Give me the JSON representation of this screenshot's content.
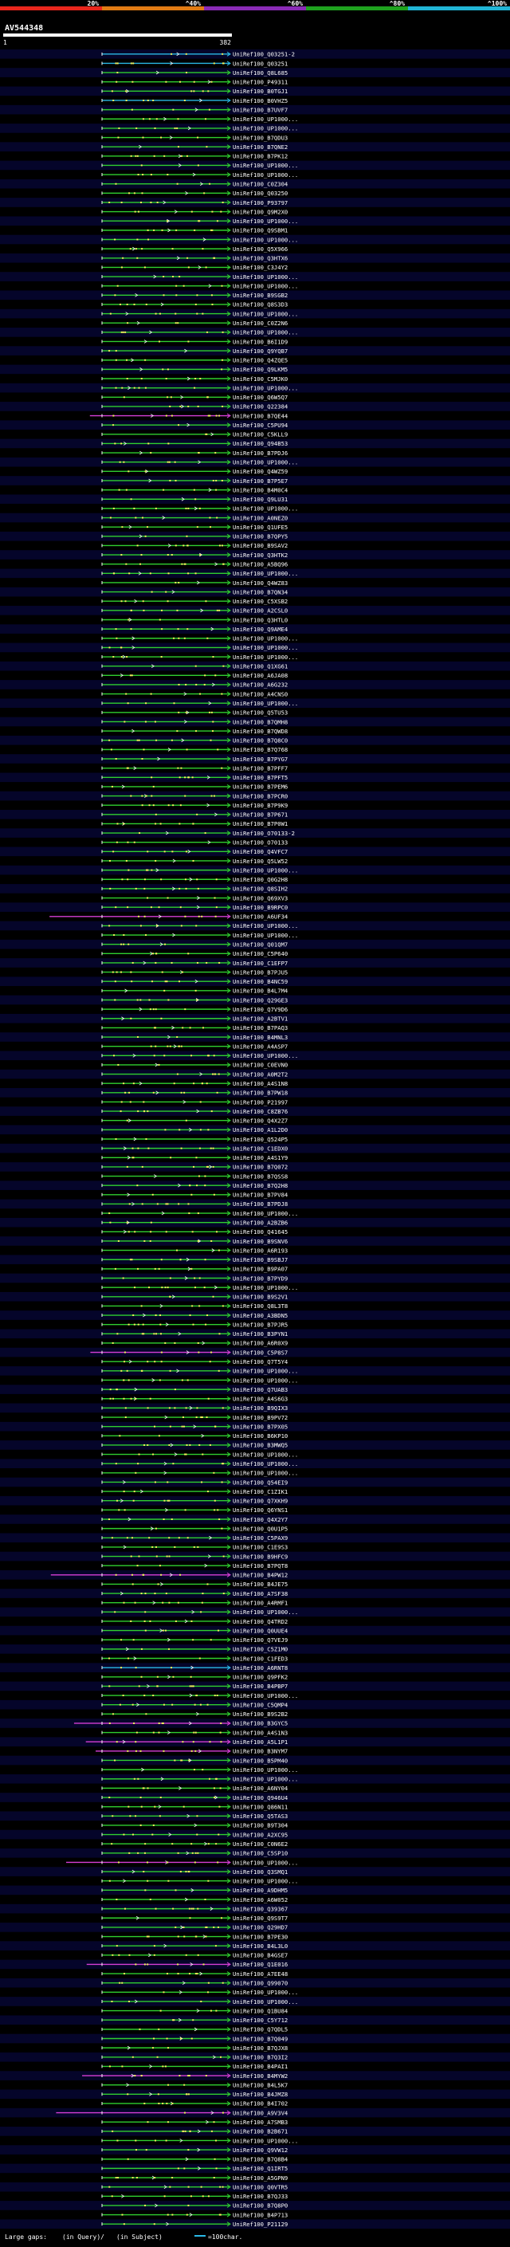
{
  "chart_data": {
    "type": "alignment-overview",
    "title": "AV544348",
    "query_range": [
      1,
      382
    ],
    "query_start_label": "1",
    "query_end_label": "382",
    "identity_scale": [
      {
        "label": "20%",
        "color": "#e8261c"
      },
      {
        "label": "^40%",
        "color": "#e07b14"
      },
      {
        "label": "^60%",
        "color": "#8a2bb6"
      },
      {
        "label": "^80%",
        "color": "#1fa21f"
      },
      {
        "label": "^100%",
        "color": "#21b5d6"
      }
    ],
    "hits": [
      {
        "label": "UniRef100_Q03251-2",
        "color": "cyan"
      },
      {
        "label": "UniRef100_Q03251",
        "color": "cyan"
      },
      {
        "label": "UniRef100_Q8L685",
        "color": "green"
      },
      {
        "label": "UniRef100_P49311",
        "color": "green"
      },
      {
        "label": "UniRef100_B0TGJ1",
        "color": "green"
      },
      {
        "label": "UniRef100_B0VHZ5",
        "color": "cyan"
      },
      {
        "label": "UniRef100_B7UVF7",
        "color": "green"
      },
      {
        "label": "UniRef100_UP1000...",
        "color": "green"
      },
      {
        "label": "UniRef100_UP1000...",
        "color": "green"
      },
      {
        "label": "UniRef100_B7QDU3",
        "color": "green"
      },
      {
        "label": "UniRef100_B7QNE2",
        "color": "green"
      },
      {
        "label": "UniRef100_B7PK12",
        "color": "green"
      },
      {
        "label": "UniRef100_UP1000...",
        "color": "green"
      },
      {
        "label": "UniRef100_UP1000...",
        "color": "green"
      },
      {
        "label": "UniRef100_C0Z304",
        "color": "green"
      },
      {
        "label": "UniRef100_Q03250",
        "color": "green"
      },
      {
        "label": "UniRef100_P93797",
        "color": "green"
      },
      {
        "label": "UniRef100_Q9M2X0",
        "color": "green"
      },
      {
        "label": "UniRef100_UP1000...",
        "color": "green"
      },
      {
        "label": "UniRef100_Q9SBM1",
        "color": "green"
      },
      {
        "label": "UniRef100_UP1000...",
        "color": "green"
      },
      {
        "label": "UniRef100_Q5X966",
        "color": "green"
      },
      {
        "label": "UniRef100_Q3HTX6",
        "color": "green"
      },
      {
        "label": "UniRef100_C3J4Y2",
        "color": "green"
      },
      {
        "label": "UniRef100_UP1000...",
        "color": "green"
      },
      {
        "label": "UniRef100_UP1000...",
        "color": "green"
      },
      {
        "label": "UniRef100_B9SGB2",
        "color": "green"
      },
      {
        "label": "UniRef100_Q8S3D3",
        "color": "green"
      },
      {
        "label": "UniRef100_UP1000...",
        "color": "green"
      },
      {
        "label": "UniRef100_C0Z2N6",
        "color": "green"
      },
      {
        "label": "UniRef100_UP1000...",
        "color": "green"
      },
      {
        "label": "UniRef100_B6I1D9",
        "color": "green"
      },
      {
        "label": "UniRef100_Q9YQB7",
        "color": "green"
      },
      {
        "label": "UniRef100_Q4ZQE5",
        "color": "green"
      },
      {
        "label": "UniRef100_Q9LKM5",
        "color": "green"
      },
      {
        "label": "UniRef100_C5MJK0",
        "color": "green"
      },
      {
        "label": "UniRef100_UP1000...",
        "color": "green"
      },
      {
        "label": "UniRef100_Q6W5Q7",
        "color": "green"
      },
      {
        "label": "UniRef100_Q22384",
        "color": "green"
      },
      {
        "label": "UniRef100_B7QE44",
        "color": "magenta"
      },
      {
        "label": "UniRef100_C5PU94",
        "color": "green"
      },
      {
        "label": "UniRef100_C5KLL9",
        "color": "green"
      },
      {
        "label": "UniRef100_Q94B53",
        "color": "green"
      },
      {
        "label": "UniRef100_B7PDJ6",
        "color": "green"
      },
      {
        "label": "UniRef100_UP1000...",
        "color": "green"
      },
      {
        "label": "UniRef100_Q4WZ59",
        "color": "green"
      },
      {
        "label": "UniRef100_B7P5E7",
        "color": "green"
      },
      {
        "label": "UniRef100_B4M0C4",
        "color": "green"
      },
      {
        "label": "UniRef100_Q9LU31",
        "color": "green"
      },
      {
        "label": "UniRef100_UP1000...",
        "color": "green"
      },
      {
        "label": "UniRef100_A0NEZ0",
        "color": "green"
      },
      {
        "label": "UniRef100_Q1UFE5",
        "color": "green"
      },
      {
        "label": "UniRef100_B7QPY5",
        "color": "green"
      },
      {
        "label": "UniRef100_B9SAV2",
        "color": "green"
      },
      {
        "label": "UniRef100_Q3HTK2",
        "color": "green"
      },
      {
        "label": "UniRef100_A5BQ96",
        "color": "green"
      },
      {
        "label": "UniRef100_UP1000...",
        "color": "green"
      },
      {
        "label": "UniRef100_Q4WZ83",
        "color": "green"
      },
      {
        "label": "UniRef100_B7QN34",
        "color": "green"
      },
      {
        "label": "UniRef100_C5XSB2",
        "color": "green"
      },
      {
        "label": "UniRef100_A2CSL0",
        "color": "green"
      },
      {
        "label": "UniRef100_Q3HTL0",
        "color": "green"
      },
      {
        "label": "UniRef100_Q9AME4",
        "color": "green"
      },
      {
        "label": "UniRef100_UP1000...",
        "color": "green"
      },
      {
        "label": "UniRef100_UP1000...",
        "color": "green"
      },
      {
        "label": "UniRef100_UP1000...",
        "color": "green"
      },
      {
        "label": "UniRef100_Q1XG61",
        "color": "green"
      },
      {
        "label": "UniRef100_A6JA08",
        "color": "green"
      },
      {
        "label": "UniRef100_A6G232",
        "color": "green"
      },
      {
        "label": "UniRef100_A4CNS0",
        "color": "green"
      },
      {
        "label": "UniRef100_UP1000...",
        "color": "green"
      },
      {
        "label": "UniRef100_Q5TU53",
        "color": "green"
      },
      {
        "label": "UniRef100_B7QMH8",
        "color": "green"
      },
      {
        "label": "UniRef100_B7QWD8",
        "color": "green"
      },
      {
        "label": "UniRef100_B7Q8C0",
        "color": "green"
      },
      {
        "label": "UniRef100_B7Q768",
        "color": "green"
      },
      {
        "label": "UniRef100_B7PYG7",
        "color": "green"
      },
      {
        "label": "UniRef100_B7PFF7",
        "color": "green"
      },
      {
        "label": "UniRef100_B7PFT5",
        "color": "green"
      },
      {
        "label": "UniRef100_B7PEM6",
        "color": "green"
      },
      {
        "label": "UniRef100_B7PCR0",
        "color": "green"
      },
      {
        "label": "UniRef100_B7P9K9",
        "color": "green"
      },
      {
        "label": "UniRef100_B7P671",
        "color": "green"
      },
      {
        "label": "UniRef100_B7P0W1",
        "color": "green"
      },
      {
        "label": "UniRef100_O70133-2",
        "color": "green"
      },
      {
        "label": "UniRef100_O70133",
        "color": "green"
      },
      {
        "label": "UniRef100_Q4VFC7",
        "color": "green"
      },
      {
        "label": "UniRef100_Q5LW52",
        "color": "green"
      },
      {
        "label": "UniRef100_UP1000...",
        "color": "green"
      },
      {
        "label": "UniRef100_Q0G2H8",
        "color": "green"
      },
      {
        "label": "UniRef100_Q8SIH2",
        "color": "green"
      },
      {
        "label": "UniRef100_Q69XV3",
        "color": "green"
      },
      {
        "label": "UniRef100_B9RPC0",
        "color": "green"
      },
      {
        "label": "UniRef100_A6UF34",
        "color": "magenta"
      },
      {
        "label": "UniRef100_UP1000...",
        "color": "green"
      },
      {
        "label": "UniRef100_UP1000...",
        "color": "green"
      },
      {
        "label": "UniRef100_Q01QM7",
        "color": "green"
      },
      {
        "label": "UniRef100_C5P640",
        "color": "green"
      },
      {
        "label": "UniRef100_C1EFP7",
        "color": "green"
      },
      {
        "label": "UniRef100_B7PJU5",
        "color": "green"
      },
      {
        "label": "UniRef100_B4NC59",
        "color": "green"
      },
      {
        "label": "UniRef100_B4L7M4",
        "color": "green"
      },
      {
        "label": "UniRef100_Q29GE3",
        "color": "green"
      },
      {
        "label": "UniRef100_Q7V9D6",
        "color": "green"
      },
      {
        "label": "UniRef100_A2BTV1",
        "color": "green"
      },
      {
        "label": "UniRef100_B7PAQ3",
        "color": "green"
      },
      {
        "label": "UniRef100_B4MNL3",
        "color": "green"
      },
      {
        "label": "UniRef100_A4ASP7",
        "color": "green"
      },
      {
        "label": "UniRef100_UP1000...",
        "color": "green"
      },
      {
        "label": "UniRef100_C0EVN0",
        "color": "green"
      },
      {
        "label": "UniRef100_A0M2T2",
        "color": "green"
      },
      {
        "label": "UniRef100_A4S1N8",
        "color": "green"
      },
      {
        "label": "UniRef100_B7PW18",
        "color": "green"
      },
      {
        "label": "UniRef100_P21997",
        "color": "green"
      },
      {
        "label": "UniRef100_C8ZB76",
        "color": "green"
      },
      {
        "label": "UniRef100_Q4X2Z7",
        "color": "green"
      },
      {
        "label": "UniRef100_A1L2D0",
        "color": "green"
      },
      {
        "label": "UniRef100_Q524P5",
        "color": "green"
      },
      {
        "label": "UniRef100_C1EDX0",
        "color": "green"
      },
      {
        "label": "UniRef100_A4S1Y9",
        "color": "green"
      },
      {
        "label": "UniRef100_B7Q072",
        "color": "green"
      },
      {
        "label": "UniRef100_B7QSS8",
        "color": "green"
      },
      {
        "label": "UniRef100_B7Q2H8",
        "color": "green"
      },
      {
        "label": "UniRef100_B7PV84",
        "color": "green"
      },
      {
        "label": "UniRef100_B7PDJ8",
        "color": "green"
      },
      {
        "label": "UniRef100_UP1000...",
        "color": "green"
      },
      {
        "label": "UniRef100_A2BZB6",
        "color": "green"
      },
      {
        "label": "UniRef100_Q41645",
        "color": "green"
      },
      {
        "label": "UniRef100_B9SNV6",
        "color": "green"
      },
      {
        "label": "UniRef100_A6R193",
        "color": "green"
      },
      {
        "label": "UniRef100_B9SBJ7",
        "color": "green"
      },
      {
        "label": "UniRef100_B9PA07",
        "color": "green"
      },
      {
        "label": "UniRef100_B7PYD9",
        "color": "green"
      },
      {
        "label": "UniRef100_UP1000...",
        "color": "green"
      },
      {
        "label": "UniRef100_B9S2V1",
        "color": "green"
      },
      {
        "label": "UniRef100_Q8L3T8",
        "color": "green"
      },
      {
        "label": "UniRef100_A3BDN5",
        "color": "green"
      },
      {
        "label": "UniRef100_B7PJR5",
        "color": "green"
      },
      {
        "label": "UniRef100_B3PYN1",
        "color": "green"
      },
      {
        "label": "UniRef100_A6R0X9",
        "color": "green"
      },
      {
        "label": "UniRef100_C5P8S7",
        "color": "magenta"
      },
      {
        "label": "UniRef100_Q7T5Y4",
        "color": "green"
      },
      {
        "label": "UniRef100_UP1000...",
        "color": "green"
      },
      {
        "label": "UniRef100_UP1000...",
        "color": "green"
      },
      {
        "label": "UniRef100_Q7UAB3",
        "color": "green"
      },
      {
        "label": "UniRef100_A4S6G3",
        "color": "green"
      },
      {
        "label": "UniRef100_B9QIX3",
        "color": "green"
      },
      {
        "label": "UniRef100_B9PV72",
        "color": "green"
      },
      {
        "label": "UniRef100_B7PX05",
        "color": "green"
      },
      {
        "label": "UniRef100_B6KP10",
        "color": "green"
      },
      {
        "label": "UniRef100_B3MWQ5",
        "color": "green"
      },
      {
        "label": "UniRef100_UP1000...",
        "color": "green"
      },
      {
        "label": "UniRef100_UP1000...",
        "color": "green"
      },
      {
        "label": "UniRef100_UP1000...",
        "color": "green"
      },
      {
        "label": "UniRef100_Q54EI9",
        "color": "green"
      },
      {
        "label": "UniRef100_C1ZIK1",
        "color": "green"
      },
      {
        "label": "UniRef100_Q7XKH9",
        "color": "green"
      },
      {
        "label": "UniRef100_Q6YNS1",
        "color": "green"
      },
      {
        "label": "UniRef100_Q4X2Y7",
        "color": "green"
      },
      {
        "label": "UniRef100_Q0U1P5",
        "color": "green"
      },
      {
        "label": "UniRef100_C5PAX9",
        "color": "green"
      },
      {
        "label": "UniRef100_C1E9S3",
        "color": "green"
      },
      {
        "label": "UniRef100_B9HFC9",
        "color": "green"
      },
      {
        "label": "UniRef100_B7PQT8",
        "color": "green"
      },
      {
        "label": "UniRef100_B4PW12",
        "color": "magenta"
      },
      {
        "label": "UniRef100_B4JE75",
        "color": "green"
      },
      {
        "label": "UniRef100_A7SF38",
        "color": "green"
      },
      {
        "label": "UniRef100_A4RMF1",
        "color": "green"
      },
      {
        "label": "UniRef100_UP1000...",
        "color": "green"
      },
      {
        "label": "UniRef100_Q4TRD2",
        "color": "green"
      },
      {
        "label": "UniRef100_Q0UUE4",
        "color": "green"
      },
      {
        "label": "UniRef100_Q7VEJ9",
        "color": "green"
      },
      {
        "label": "UniRef100_C5Z1M0",
        "color": "green"
      },
      {
        "label": "UniRef100_C1FED3",
        "color": "green"
      },
      {
        "label": "UniRef100_A6RNT8",
        "color": "cyan"
      },
      {
        "label": "UniRef100_Q9PFK2",
        "color": "green"
      },
      {
        "label": "UniRef100_B4PBP7",
        "color": "green"
      },
      {
        "label": "UniRef100_UP1000...",
        "color": "green"
      },
      {
        "label": "UniRef100_C5QMP4",
        "color": "green"
      },
      {
        "label": "UniRef100_B9S2B2",
        "color": "green"
      },
      {
        "label": "UniRef100_B3GYC5",
        "color": "magenta"
      },
      {
        "label": "UniRef100_A4S1N3",
        "color": "green"
      },
      {
        "label": "UniRef100_A5L1P1",
        "color": "magenta"
      },
      {
        "label": "UniRef100_B3NYM7",
        "color": "magenta"
      },
      {
        "label": "UniRef100_B5PM40",
        "color": "green"
      },
      {
        "label": "UniRef100_UP1000...",
        "color": "green"
      },
      {
        "label": "UniRef100_UP1000...",
        "color": "green"
      },
      {
        "label": "UniRef100_A6NY04",
        "color": "green"
      },
      {
        "label": "UniRef100_Q946U4",
        "color": "green"
      },
      {
        "label": "UniRef100_Q86N11",
        "color": "green"
      },
      {
        "label": "UniRef100_Q5TAS3",
        "color": "green"
      },
      {
        "label": "UniRef100_B9T304",
        "color": "green"
      },
      {
        "label": "UniRef100_A2XC95",
        "color": "green"
      },
      {
        "label": "UniRef100_C0N6E2",
        "color": "green"
      },
      {
        "label": "UniRef100_C5SP10",
        "color": "green"
      },
      {
        "label": "UniRef100_UP1000...",
        "color": "magenta"
      },
      {
        "label": "UniRef100_Q3SMQ1",
        "color": "green"
      },
      {
        "label": "UniRef100_UP1000...",
        "color": "green"
      },
      {
        "label": "UniRef100_A9DHM5",
        "color": "green"
      },
      {
        "label": "UniRef100_A6W052",
        "color": "green"
      },
      {
        "label": "UniRef100_Q39367",
        "color": "green"
      },
      {
        "label": "UniRef100_Q9S9T7",
        "color": "green"
      },
      {
        "label": "UniRef100_Q29HD7",
        "color": "green"
      },
      {
        "label": "UniRef100_B7PE30",
        "color": "green"
      },
      {
        "label": "UniRef100_B4L3L0",
        "color": "green"
      },
      {
        "label": "UniRef100_B4GSE7",
        "color": "green"
      },
      {
        "label": "UniRef100_Q1E016",
        "color": "magenta"
      },
      {
        "label": "UniRef100_A7EE48",
        "color": "green"
      },
      {
        "label": "UniRef100_Q99070",
        "color": "green"
      },
      {
        "label": "UniRef100_UP1000...",
        "color": "green"
      },
      {
        "label": "UniRef100_UP1000...",
        "color": "green"
      },
      {
        "label": "UniRef100_Q1BU84",
        "color": "green"
      },
      {
        "label": "UniRef100_C5Y712",
        "color": "green"
      },
      {
        "label": "UniRef100_Q7QDL5",
        "color": "green"
      },
      {
        "label": "UniRef100_B7Q049",
        "color": "green"
      },
      {
        "label": "UniRef100_B7QJX8",
        "color": "green"
      },
      {
        "label": "UniRef100_B7Q3I2",
        "color": "green"
      },
      {
        "label": "UniRef100_B4PAI1",
        "color": "green"
      },
      {
        "label": "UniRef100_B4MYW2",
        "color": "magenta"
      },
      {
        "label": "UniRef100_B4L5K7",
        "color": "green"
      },
      {
        "label": "UniRef100_B4JMZ8",
        "color": "green"
      },
      {
        "label": "UniRef100_B4I702",
        "color": "green"
      },
      {
        "label": "UniRef100_A9V3V4",
        "color": "magenta"
      },
      {
        "label": "UniRef100_A7SMB3",
        "color": "green"
      },
      {
        "label": "UniRef100_B2B671",
        "color": "green"
      },
      {
        "label": "UniRef100_UP1000...",
        "color": "green"
      },
      {
        "label": "UniRef100_Q9VW12",
        "color": "green"
      },
      {
        "label": "UniRef100_B7Q8B4",
        "color": "green"
      },
      {
        "label": "UniRef100_Q1IRT5",
        "color": "green"
      },
      {
        "label": "UniRef100_A5GPN9",
        "color": "green"
      },
      {
        "label": "UniRef100_Q0VTR5",
        "color": "green"
      },
      {
        "label": "UniRef100_B7QJ33",
        "color": "green"
      },
      {
        "label": "UniRef100_B7Q8P0",
        "color": "green"
      },
      {
        "label": "UniRef100_B4P713",
        "color": "green"
      },
      {
        "label": "UniRef100_P21129",
        "color": "green"
      }
    ],
    "legend": {
      "large_gaps_text": "Large gaps:",
      "in_query_text": "(in Query)/",
      "in_subject_text": "(in Subject)",
      "scale_text": "=100char."
    }
  },
  "colors": {
    "background": "#000000",
    "row_band": "#05052a",
    "axis": "#ffffff",
    "green": "#2fcf2f",
    "magenta": "#d63ed6",
    "cyan": "#2ab9e6",
    "dots": "#f2f25c",
    "gap_marks": "#ffffff"
  }
}
